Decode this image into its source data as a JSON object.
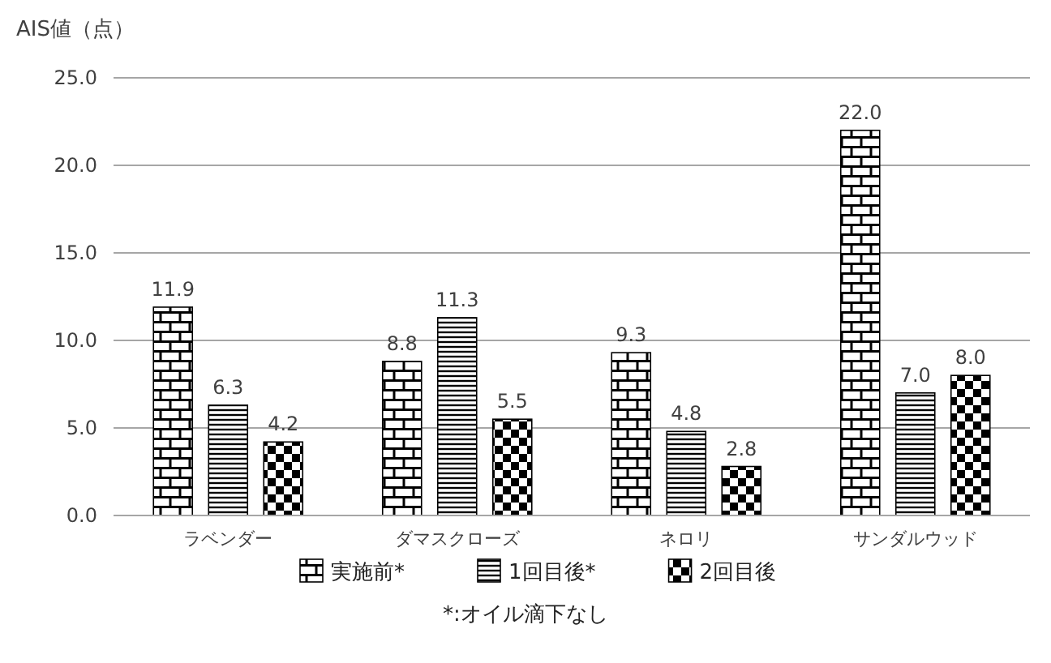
{
  "chart_data": {
    "type": "bar",
    "ylabel": "AIS値（点）",
    "categories": [
      "ラベンダー",
      "ダマスクローズ",
      "ネロリ",
      "サンダルウッド"
    ],
    "series": [
      {
        "name": "実施前*",
        "color": "#000000",
        "values": [
          11.9,
          8.8,
          9.3,
          22.0
        ],
        "value_labels": [
          "11.9",
          "8.8",
          "9.3",
          "22.0"
        ]
      },
      {
        "name": "1回目後*",
        "color": "#000000",
        "values": [
          6.3,
          11.3,
          4.8,
          7.0
        ],
        "value_labels": [
          "6.3",
          "11.3",
          "4.8",
          "7.0"
        ]
      },
      {
        "name": "2回目後",
        "color": "#000000",
        "values": [
          4.2,
          5.5,
          2.8,
          8.0
        ],
        "value_labels": [
          "4.2",
          "5.5",
          "2.8",
          "8.0"
        ]
      }
    ],
    "ylim": [
      0,
      25
    ],
    "yticks": [
      {
        "value": 0,
        "label": "0.0"
      },
      {
        "value": 5,
        "label": "5.0"
      },
      {
        "value": 10,
        "label": "10.0"
      },
      {
        "value": 15,
        "label": "15.0"
      },
      {
        "value": 20,
        "label": "20.0"
      },
      {
        "value": 25,
        "label": "25.0"
      }
    ],
    "grid": "y",
    "legend": "bottom",
    "annotations": [
      "*:オイル滴下なし"
    ]
  }
}
